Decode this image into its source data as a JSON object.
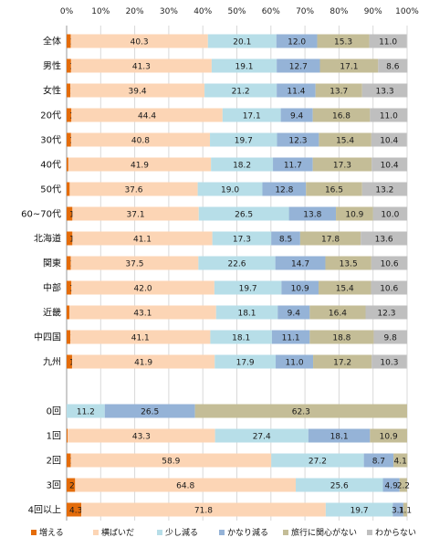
{
  "chart_data": {
    "type": "bar",
    "stacked": true,
    "orientation": "horizontal",
    "xlim": [
      0,
      100
    ],
    "x_ticks": [
      "0%",
      "10%",
      "20%",
      "30%",
      "40%",
      "50%",
      "60%",
      "70%",
      "80%",
      "90%",
      "100%"
    ],
    "grid": true,
    "legend_position": "bottom",
    "categories": [
      "全体",
      "男性",
      "女性",
      "20代",
      "30代",
      "40代",
      "50代",
      "60~70代",
      "北海道",
      "関東",
      "中部",
      "近畿",
      "中四国",
      "九州",
      "0回",
      "1回",
      "2回",
      "3回",
      "4回以上"
    ],
    "series": [
      {
        "name": "増える",
        "color": "#e46c0a",
        "values": [
          1.2,
          1.3,
          1.1,
          1.4,
          1.3,
          0.5,
          0.9,
          1.7,
          1.7,
          1.2,
          1.4,
          0.8,
          1.1,
          1.6,
          0,
          0.3,
          1.2,
          2.5,
          4.3
        ]
      },
      {
        "name": "横ばいだ",
        "color": "#fcd5b5",
        "values": [
          40.3,
          41.3,
          39.4,
          44.4,
          40.8,
          41.9,
          37.6,
          37.1,
          41.1,
          37.5,
          42.0,
          43.1,
          41.1,
          41.9,
          0,
          43.3,
          58.9,
          64.8,
          71.8
        ]
      },
      {
        "name": "少し減る",
        "color": "#b7dee8",
        "values": [
          20.1,
          19.1,
          21.2,
          17.1,
          19.7,
          18.2,
          19.0,
          26.5,
          17.3,
          22.6,
          19.7,
          18.1,
          18.1,
          17.9,
          11.2,
          27.4,
          27.2,
          25.6,
          19.7
        ]
      },
      {
        "name": "かなり減る",
        "color": "#95b3d7",
        "values": [
          12.0,
          12.7,
          11.4,
          9.4,
          12.3,
          11.7,
          12.8,
          13.8,
          8.5,
          14.7,
          10.9,
          9.4,
          11.1,
          11.0,
          26.5,
          18.1,
          8.7,
          4.9,
          3.1
        ]
      },
      {
        "name": "旅行に関心がない",
        "color": "#c4bd97",
        "values": [
          15.3,
          17.1,
          13.7,
          16.8,
          15.4,
          17.3,
          16.5,
          10.9,
          17.8,
          13.5,
          15.4,
          16.4,
          18.8,
          17.2,
          62.3,
          10.9,
          4.1,
          2.2,
          1.1
        ]
      },
      {
        "name": "わからない",
        "color": "#bfbfbf",
        "values": [
          11.0,
          8.6,
          13.3,
          11.0,
          10.4,
          10.4,
          13.2,
          10.0,
          13.6,
          10.6,
          10.6,
          12.3,
          9.8,
          10.3,
          0,
          0,
          0,
          0,
          0
        ]
      }
    ],
    "data_labels": [
      [
        "1.2",
        "40.3",
        "20.1",
        "12.0",
        "15.3",
        "11.0"
      ],
      [
        "1.3",
        "41.3",
        "19.1",
        "12.7",
        "17.1",
        "8.6"
      ],
      [
        "1.1",
        "39.4",
        "21.2",
        "11.4",
        "13.7",
        "13.3"
      ],
      [
        "1.4",
        "44.4",
        "17.1",
        "9.4",
        "16.8",
        "11.0"
      ],
      [
        "1.3",
        "40.8",
        "19.7",
        "12.3",
        "15.4",
        "10.4"
      ],
      [
        "0.5",
        "41.9",
        "18.2",
        "11.7",
        "17.3",
        "10.4"
      ],
      [
        "0.9",
        "37.6",
        "19.0",
        "12.8",
        "16.5",
        "13.2"
      ],
      [
        "1.7",
        "37.1",
        "26.5",
        "13.8",
        "10.9",
        "10.0"
      ],
      [
        "1.7",
        "41.1",
        "17.3",
        "8.5",
        "17.8",
        "13.6"
      ],
      [
        "1.2",
        "37.5",
        "22.6",
        "14.7",
        "13.5",
        "10.6"
      ],
      [
        "1.4",
        "42.0",
        "19.7",
        "10.9",
        "15.4",
        "10.6"
      ],
      [
        "0.8",
        "43.1",
        "18.1",
        "9.4",
        "16.4",
        "12.3"
      ],
      [
        "1.1",
        "41.1",
        "18.1",
        "11.1",
        "18.8",
        "9.8"
      ],
      [
        "1.6",
        "41.9",
        "17.9",
        "11.0",
        "17.2",
        "10.3"
      ],
      [
        "",
        "",
        "11.2",
        "26.5",
        "62.3",
        ""
      ],
      [
        "0.3",
        "43.3",
        "27.4",
        "18.1",
        "10.9",
        ""
      ],
      [
        "1.2",
        "58.9",
        "27.2",
        "8.7",
        "4.1",
        ""
      ],
      [
        "2.5",
        "64.8",
        "25.6",
        "4.9",
        "2.2",
        ""
      ],
      [
        "4.3",
        "71.8",
        "19.7",
        "3.1",
        "1.1",
        ""
      ]
    ]
  }
}
